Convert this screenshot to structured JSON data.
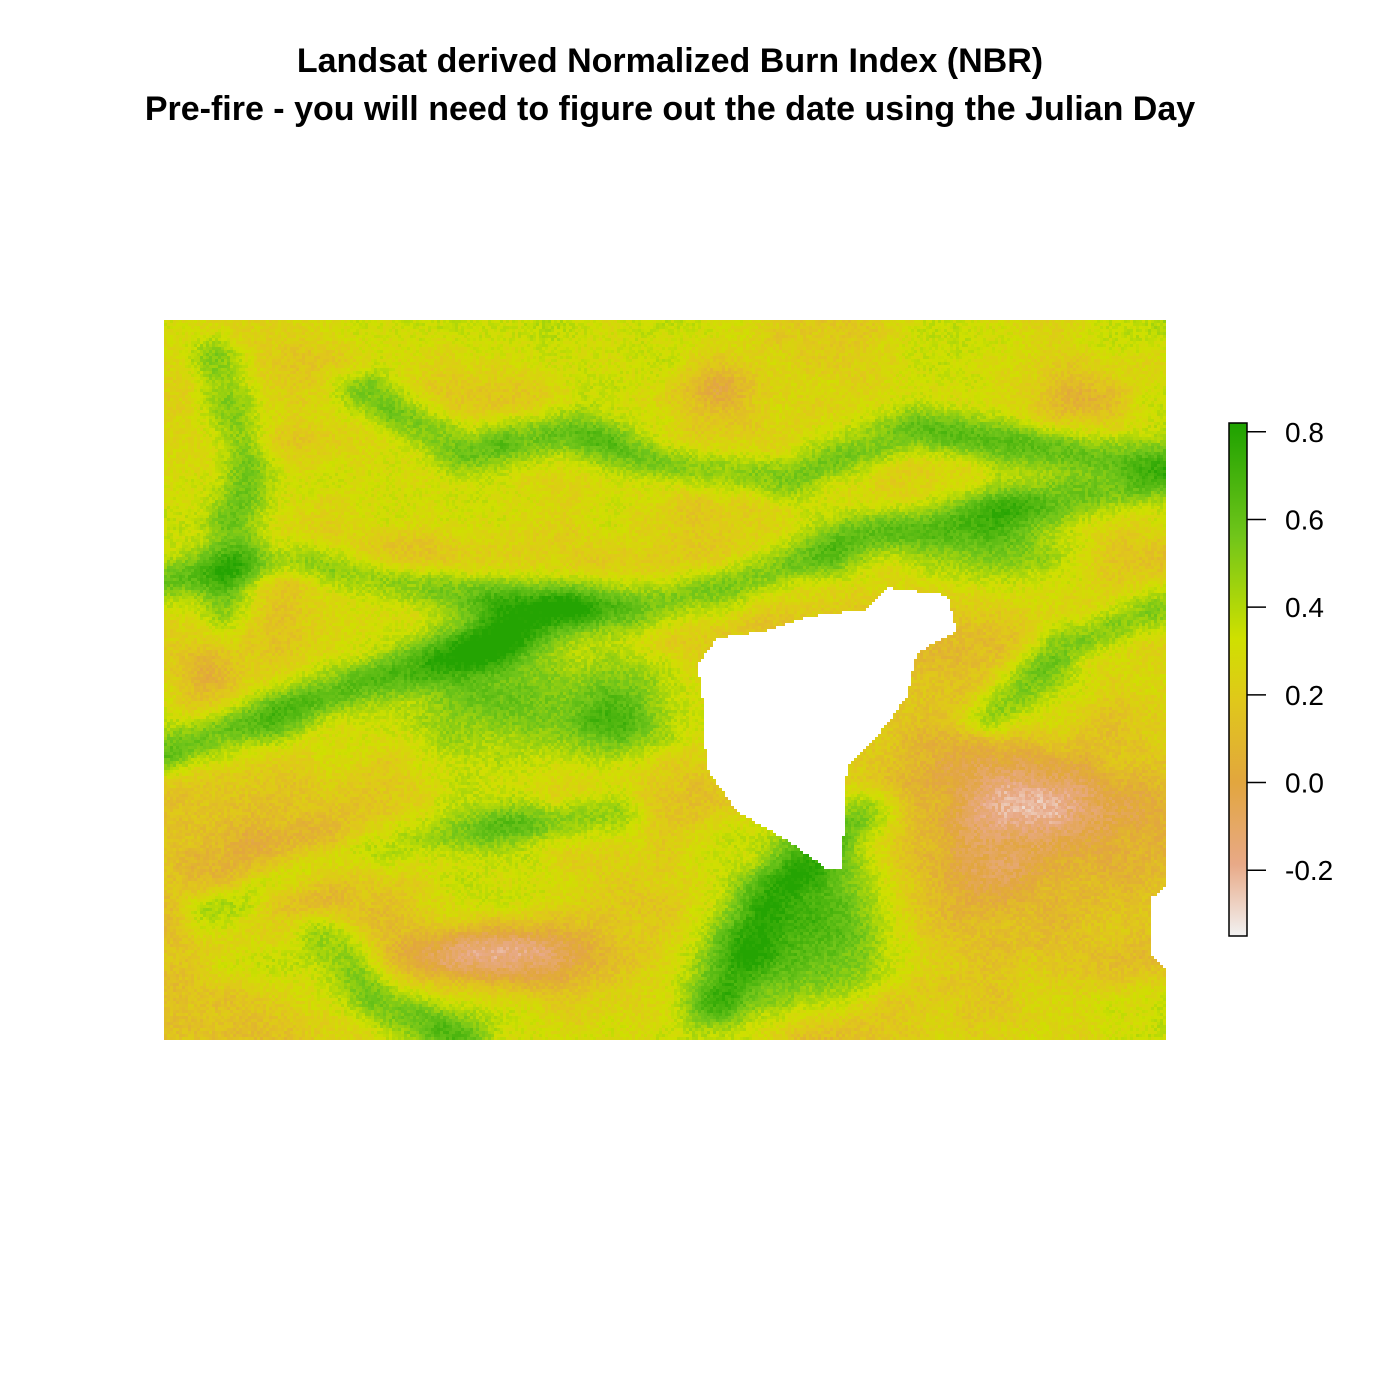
{
  "title_line_1": "Landsat derived Normalized Burn Index (NBR)",
  "title_line_2": "Pre-fire - you will need to figure out the date using the Julian Day",
  "chart_data": {
    "type": "heatmap",
    "title": "Landsat derived Normalized Burn Index (NBR)",
    "subtitle": "Pre-fire - you will need to figure out the date using the Julian Day",
    "xlabel": "",
    "ylabel": "",
    "value_range": [
      -0.35,
      0.82
    ],
    "colorbar": {
      "ticks": [
        0.8,
        0.6,
        0.4,
        0.2,
        0.0,
        -0.2
      ],
      "tick_labels": [
        "0.8",
        "0.6",
        "0.4",
        "0.2",
        "0.0",
        "-0.2"
      ],
      "placement": "right"
    },
    "palette": {
      "low": "#f2f2f2",
      "neg": "#e8a987",
      "zero": "#e2a63e",
      "mid": "#e0c81a",
      "midhigh": "#cfe000",
      "high": "#70c51a",
      "top": "#1ea100"
    },
    "nodata_color": "#ffffff",
    "grid": false,
    "axes": false
  }
}
